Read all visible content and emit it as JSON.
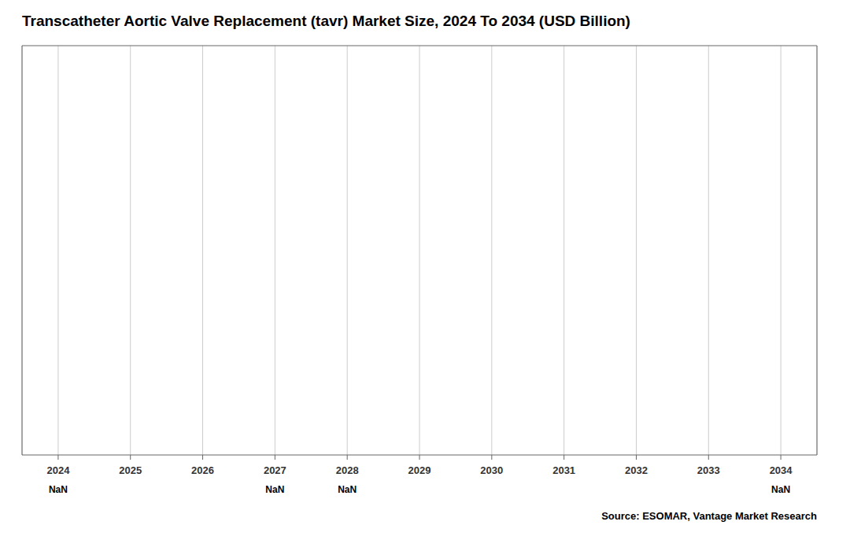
{
  "chart_data": {
    "type": "bar",
    "title": "Transcatheter Aortic Valve Replacement (tavr) Market Size, 2024 To 2034 (USD Billion)",
    "categories": [
      "2024",
      "2025",
      "2026",
      "2027",
      "2028",
      "2029",
      "2030",
      "2031",
      "2032",
      "2033",
      "2034"
    ],
    "values": [
      null,
      null,
      null,
      null,
      null,
      null,
      null,
      null,
      null,
      null,
      null
    ],
    "value_labels": [
      "NaN",
      null,
      null,
      "NaN",
      "NaN",
      null,
      null,
      null,
      null,
      null,
      "NaN"
    ],
    "data_labels": true,
    "ylim": [
      0,
      1
    ],
    "grid": "x",
    "tick_labels": "x",
    "annotations": [
      "Source: ESOMAR, Vantage Market Research"
    ]
  }
}
